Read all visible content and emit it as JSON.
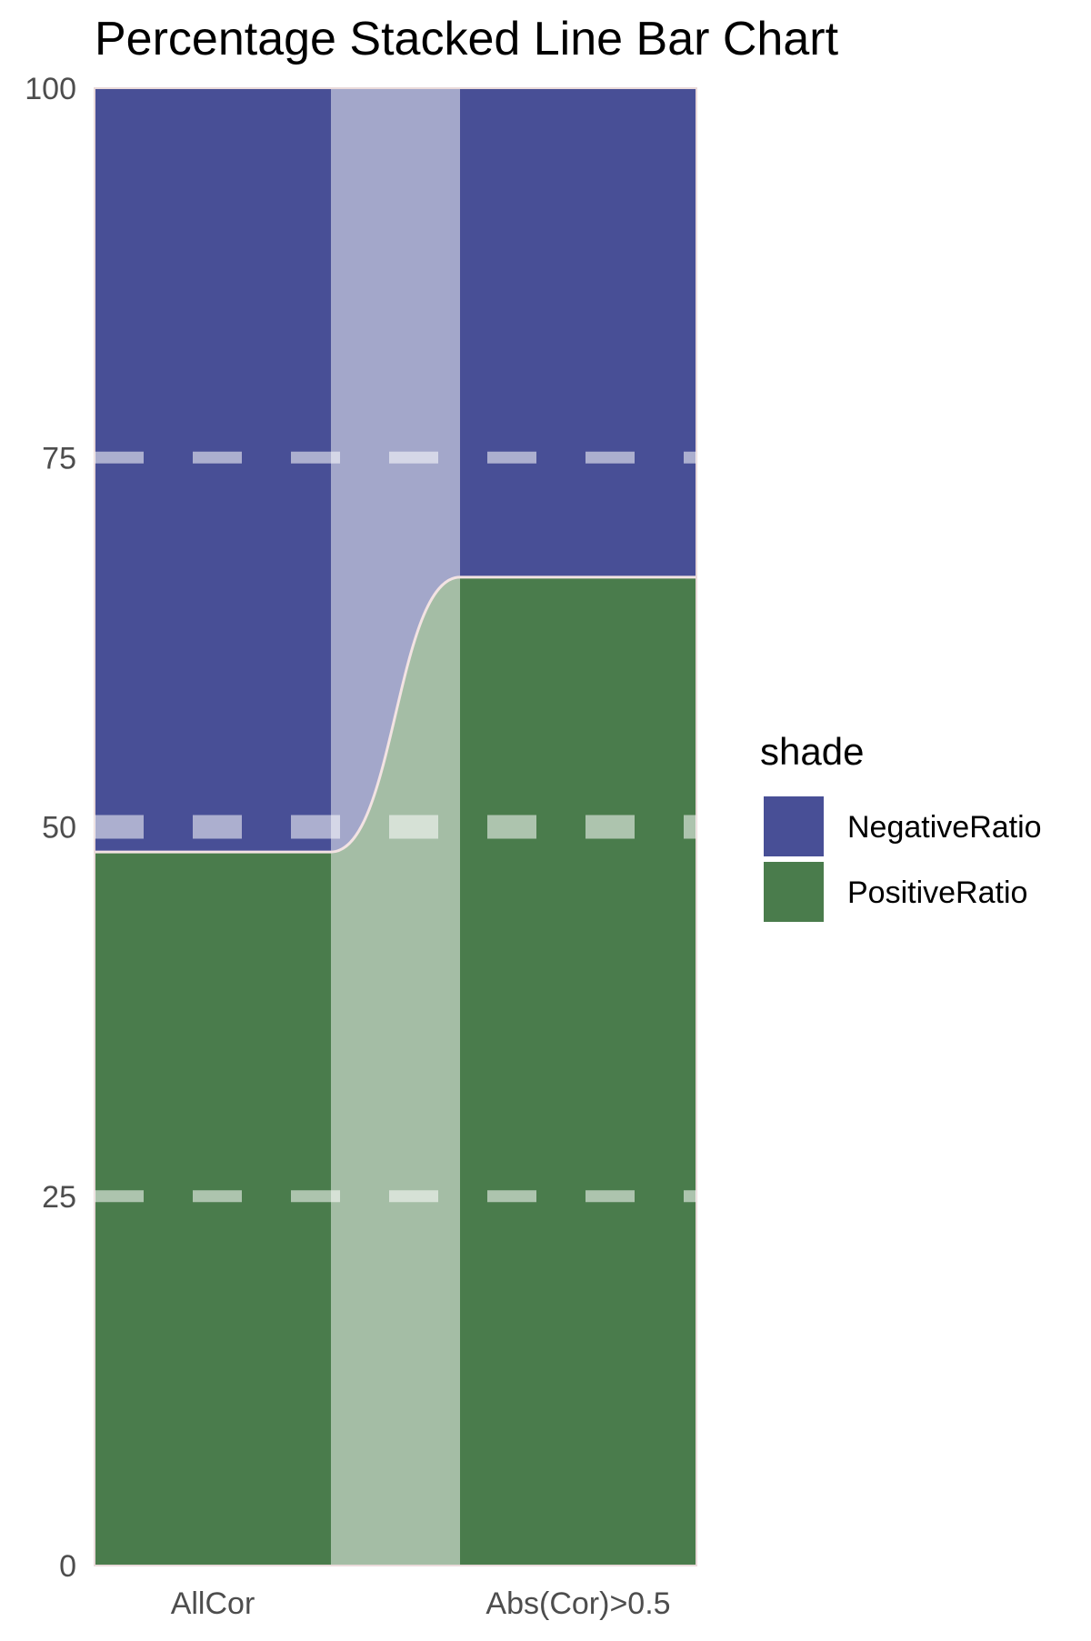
{
  "chart_data": {
    "type": "bar",
    "subtype": "percentage-stacked-bar-with-connector",
    "title": "Percentage Stacked Line Bar Chart",
    "xlabel": "",
    "ylabel": "",
    "ylim": [
      0,
      100
    ],
    "y_ticks": [
      "0",
      "25",
      "50",
      "75",
      "100"
    ],
    "grid": "dashed horizontal gridlines drawn over bars",
    "categories": [
      "AllCor",
      "Abs(Cor)>0.5"
    ],
    "series": [
      {
        "name": "PositiveRatio",
        "color": "#4a7c4c",
        "values": [
          48.3,
          66.9
        ]
      },
      {
        "name": "NegativeRatio",
        "color": "#484f96",
        "values": [
          51.7,
          33.1
        ]
      }
    ],
    "legend": {
      "title": "shade",
      "placement": "right",
      "order": [
        "NegativeRatio",
        "PositiveRatio"
      ]
    }
  }
}
